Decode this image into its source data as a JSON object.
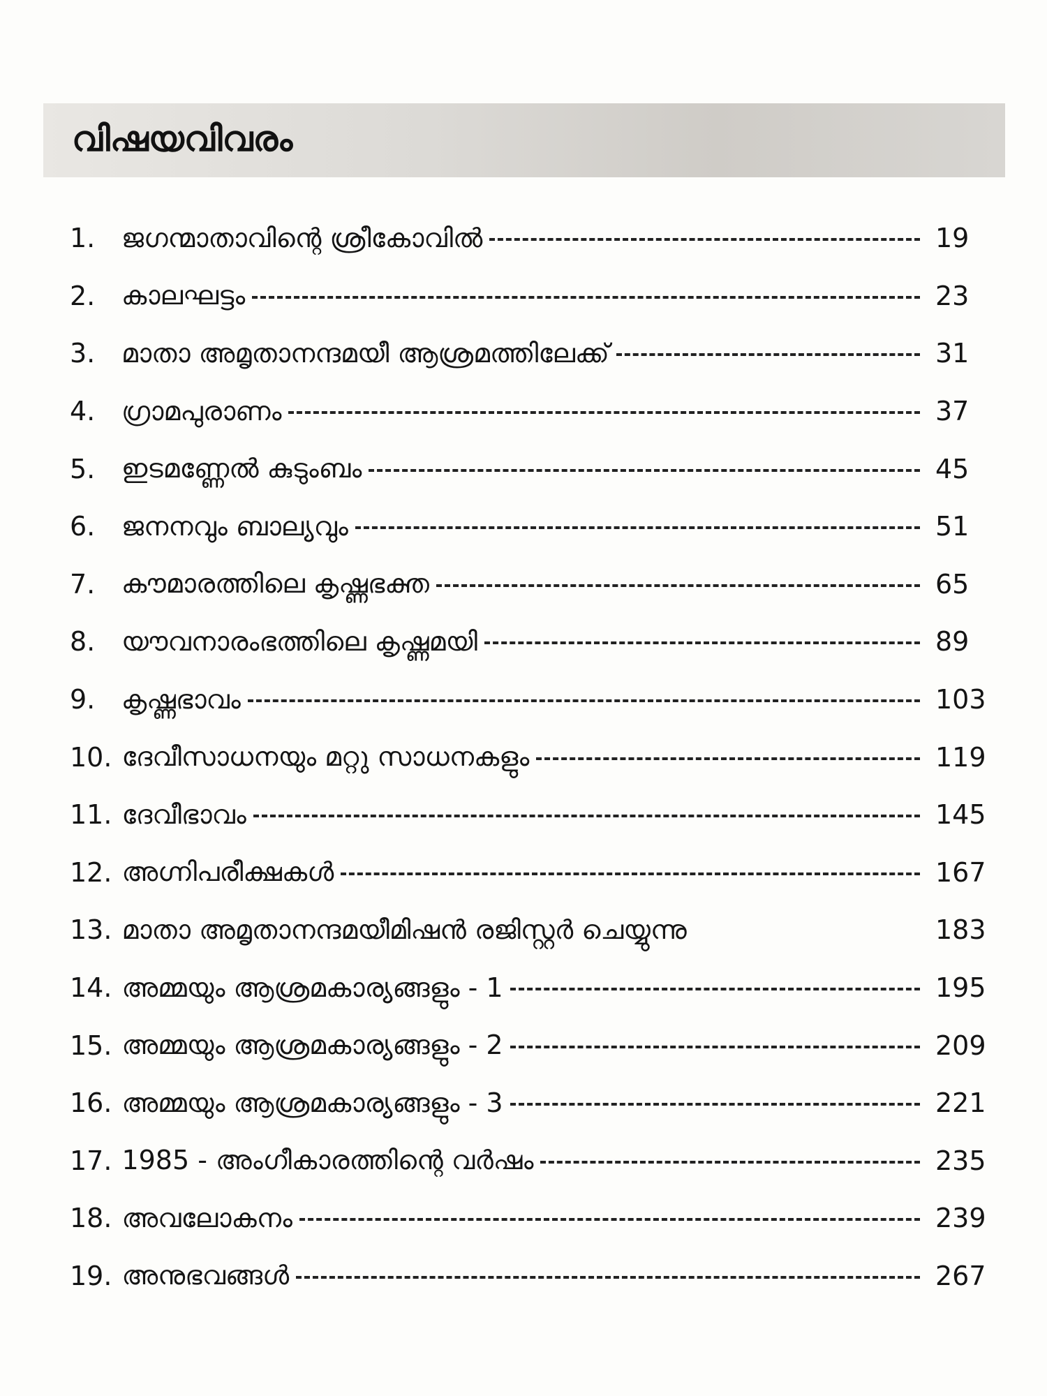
{
  "header": {
    "title": "വിഷയവിവരം"
  },
  "toc": [
    {
      "num": "1.",
      "title": "ജഗന്മാതാവിന്റെ ശ്രീകോവിൽ",
      "page": "19"
    },
    {
      "num": "2.",
      "title": "കാലഘട്ടം",
      "page": "23"
    },
    {
      "num": "3.",
      "title": "മാതാ അമൃതാനന്ദമയീ ആശ്രമത്തിലേക്ക്",
      "page": "31"
    },
    {
      "num": "4.",
      "title": "ഗ്രാമപുരാണം",
      "page": "37"
    },
    {
      "num": "5.",
      "title": "ഇടമണ്ണേൽ കുടുംബം",
      "page": "45"
    },
    {
      "num": "6.",
      "title": "ജനനവും ബാല്യവും",
      "page": "51"
    },
    {
      "num": "7.",
      "title": "കൗമാരത്തിലെ കൃഷ്ണഭക്ത",
      "page": "65"
    },
    {
      "num": "8.",
      "title": "യൗവനാരംഭത്തിലെ കൃഷ്ണമയി",
      "page": "89"
    },
    {
      "num": "9.",
      "title": "കൃഷ്ണഭാവം",
      "page": "103"
    },
    {
      "num": "10.",
      "title": "ദേവീസാധനയും മറ്റു സാധനകളും",
      "page": "119"
    },
    {
      "num": "11.",
      "title": "ദേവീഭാവം",
      "page": "145"
    },
    {
      "num": "12.",
      "title": "അഗ്നിപരീക്ഷകൾ",
      "page": "167"
    },
    {
      "num": "13.",
      "title": "മാതാ അമൃതാനന്ദമയീമിഷൻ രജിസ്റ്റർ ചെയ്യുന്നു",
      "page": "183"
    },
    {
      "num": "14.",
      "title": "അമ്മയും ആശ്രമകാര്യങ്ങളും - 1",
      "page": "195"
    },
    {
      "num": "15.",
      "title": "അമ്മയും ആശ്രമകാര്യങ്ങളും - 2",
      "page": "209"
    },
    {
      "num": "16.",
      "title": "അമ്മയും ആശ്രമകാര്യങ്ങളും - 3",
      "page": "221"
    },
    {
      "num": "17.",
      "title": "1985 - അംഗീകാരത്തിന്റെ വർഷം",
      "page": "235"
    },
    {
      "num": "18.",
      "title": "അവലോകനം",
      "page": "239"
    },
    {
      "num": "19.",
      "title": "അനുഭവങ്ങൾ",
      "page": "267"
    }
  ]
}
